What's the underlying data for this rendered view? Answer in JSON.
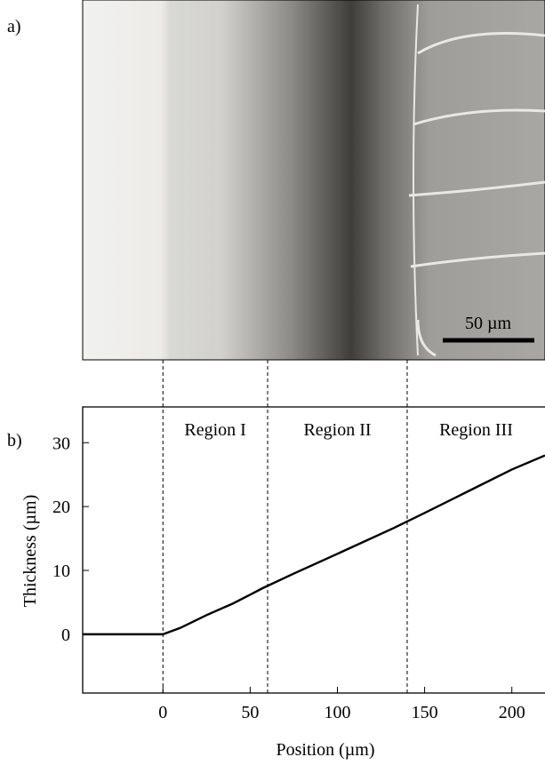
{
  "panel_a": {
    "label": "a)",
    "scale_bar_label": "50 µm"
  },
  "chart_data": {
    "type": "line",
    "panel_label": "b)",
    "x_label": "Position (µm)",
    "y_label": "Thickness (µm)",
    "x": [
      -46,
      -30,
      -20,
      0,
      10,
      25,
      40,
      50,
      57,
      75,
      100,
      132,
      150,
      175,
      200,
      219
    ],
    "series": [
      {
        "color": "#000000",
        "values": [
          0,
          0,
          0,
          0,
          1,
          3,
          4.8,
          6.2,
          7.2,
          9.5,
          12.6,
          16.6,
          19,
          22.4,
          25.8,
          28
        ]
      }
    ],
    "xlim": [
      -46,
      219
    ],
    "ylim": [
      -9.2,
      35.6
    ],
    "xticks": [
      0,
      50,
      100,
      150,
      200
    ],
    "yticks": [
      0,
      10,
      20,
      30
    ],
    "region_boundaries": [
      0,
      60,
      140
    ],
    "region_labels": [
      "Region I",
      "Region II",
      "Region III"
    ]
  }
}
